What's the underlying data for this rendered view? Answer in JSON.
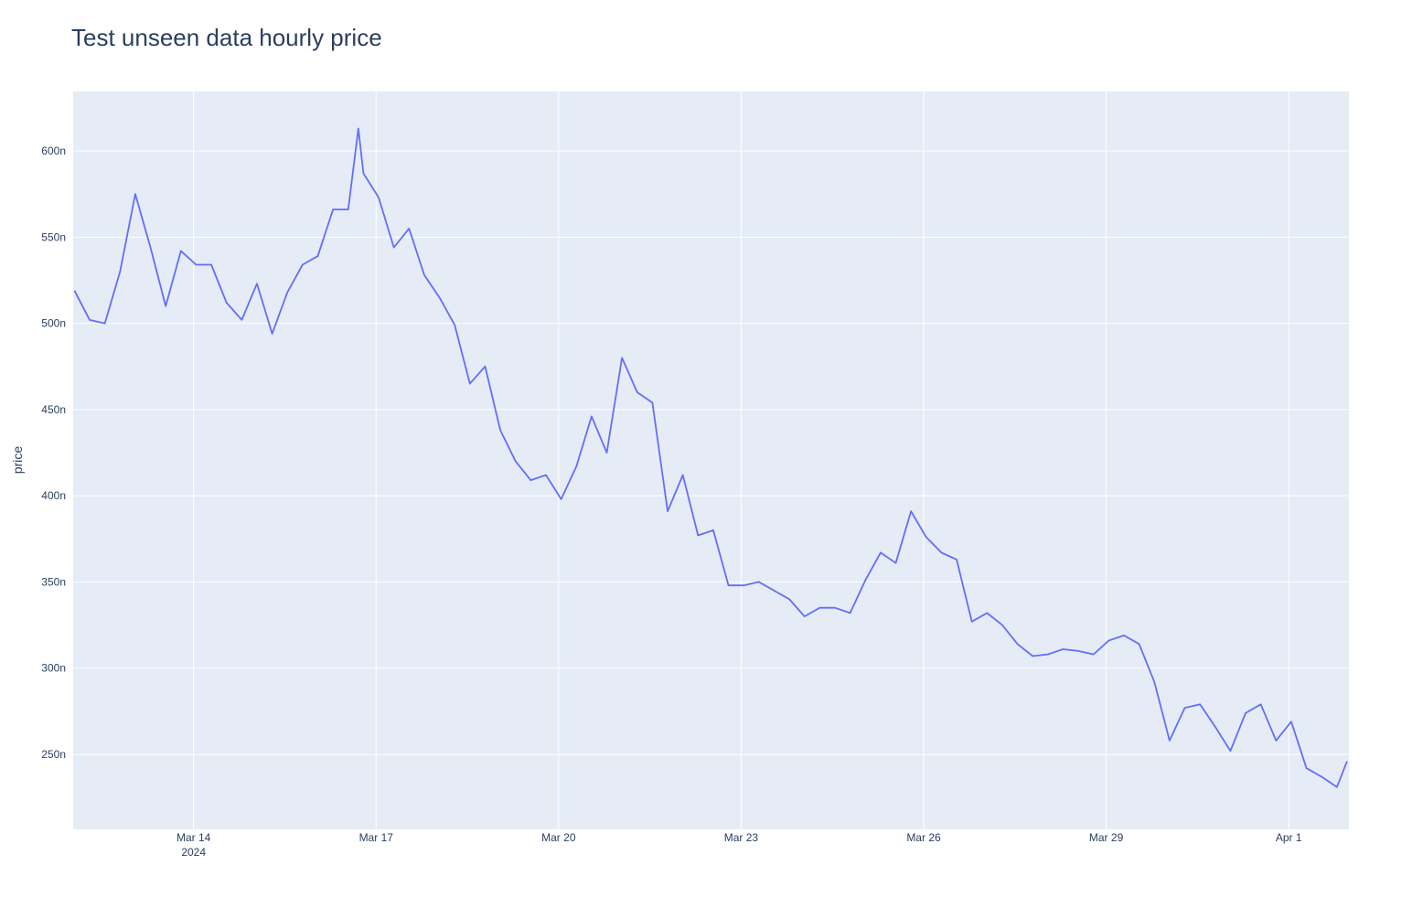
{
  "chart_data": {
    "type": "line",
    "title": "Test unseen data hourly price",
    "y_label": "price",
    "x": [
      "2024-03-12 01:00",
      "2024-03-12 07:00",
      "2024-03-12 13:00",
      "2024-03-12 19:00",
      "2024-03-13 01:00",
      "2024-03-13 07:00",
      "2024-03-13 13:00",
      "2024-03-13 19:00",
      "2024-03-14 01:00",
      "2024-03-14 07:00",
      "2024-03-14 13:00",
      "2024-03-14 19:00",
      "2024-03-15 01:00",
      "2024-03-15 07:00",
      "2024-03-15 13:00",
      "2024-03-15 19:00",
      "2024-03-16 01:00",
      "2024-03-16 07:00",
      "2024-03-16 13:00",
      "2024-03-16 17:00",
      "2024-03-16 19:00",
      "2024-03-17 01:00",
      "2024-03-17 07:00",
      "2024-03-17 13:00",
      "2024-03-17 19:00",
      "2024-03-18 01:00",
      "2024-03-18 07:00",
      "2024-03-18 13:00",
      "2024-03-18 19:00",
      "2024-03-19 01:00",
      "2024-03-19 07:00",
      "2024-03-19 13:00",
      "2024-03-19 19:00",
      "2024-03-20 01:00",
      "2024-03-20 07:00",
      "2024-03-20 13:00",
      "2024-03-20 19:00",
      "2024-03-21 01:00",
      "2024-03-21 07:00",
      "2024-03-21 13:00",
      "2024-03-21 19:00",
      "2024-03-22 01:00",
      "2024-03-22 07:00",
      "2024-03-22 13:00",
      "2024-03-22 19:00",
      "2024-03-23 01:00",
      "2024-03-23 07:00",
      "2024-03-23 13:00",
      "2024-03-23 19:00",
      "2024-03-24 01:00",
      "2024-03-24 07:00",
      "2024-03-24 13:00",
      "2024-03-24 19:00",
      "2024-03-25 01:00",
      "2024-03-25 07:00",
      "2024-03-25 13:00",
      "2024-03-25 19:00",
      "2024-03-26 01:00",
      "2024-03-26 07:00",
      "2024-03-26 13:00",
      "2024-03-26 19:00",
      "2024-03-27 01:00",
      "2024-03-27 07:00",
      "2024-03-27 13:00",
      "2024-03-27 19:00",
      "2024-03-28 01:00",
      "2024-03-28 07:00",
      "2024-03-28 13:00",
      "2024-03-28 19:00",
      "2024-03-29 01:00",
      "2024-03-29 07:00",
      "2024-03-29 13:00",
      "2024-03-29 19:00",
      "2024-03-30 01:00",
      "2024-03-30 07:00",
      "2024-03-30 13:00",
      "2024-03-30 19:00",
      "2024-03-31 01:00",
      "2024-03-31 07:00",
      "2024-03-31 13:00",
      "2024-03-31 19:00",
      "2024-04-01 01:00",
      "2024-04-01 07:00",
      "2024-04-01 13:00",
      "2024-04-01 19:00",
      "2024-04-01 23:00"
    ],
    "series": [
      {
        "name": "price",
        "color": "#636efa",
        "values": [
          519,
          502,
          500,
          530,
          575,
          544,
          510,
          542,
          534,
          534,
          512,
          502,
          523,
          494,
          518,
          534,
          539,
          566,
          566,
          613,
          587,
          573,
          544,
          555,
          528,
          515,
          499,
          465,
          475,
          438,
          420,
          409,
          412,
          398,
          417,
          446,
          425,
          480,
          460,
          454,
          391,
          412,
          377,
          380,
          348,
          348,
          350,
          345,
          340,
          330,
          335,
          335,
          332,
          351,
          367,
          361,
          391,
          376,
          367,
          363,
          327,
          332,
          325,
          314,
          307,
          308,
          311,
          310,
          308,
          316,
          319,
          314,
          292,
          258,
          277,
          279,
          266,
          252,
          274,
          279,
          258,
          269,
          242,
          237,
          231,
          246
        ]
      }
    ],
    "xlim": [
      "2024-03-12 00:30",
      "2024-04-01 23:45"
    ],
    "xticks": [
      {
        "value": "2024-03-14 00:00",
        "label": "Mar 14\n2024"
      },
      {
        "value": "2024-03-17 00:00",
        "label": "Mar 17"
      },
      {
        "value": "2024-03-20 00:00",
        "label": "Mar 20"
      },
      {
        "value": "2024-03-23 00:00",
        "label": "Mar 23"
      },
      {
        "value": "2024-03-26 00:00",
        "label": "Mar 26"
      },
      {
        "value": "2024-03-29 00:00",
        "label": "Mar 29"
      },
      {
        "value": "2024-04-01 00:00",
        "label": "Apr 1"
      }
    ],
    "ylim": [
      206.5,
      634.5
    ],
    "yticks": [
      {
        "value": 250,
        "label": "250n"
      },
      {
        "value": 300,
        "label": "300n"
      },
      {
        "value": 350,
        "label": "350n"
      },
      {
        "value": 400,
        "label": "400n"
      },
      {
        "value": 450,
        "label": "450n"
      },
      {
        "value": 500,
        "label": "500n"
      },
      {
        "value": 550,
        "label": "550n"
      },
      {
        "value": 600,
        "label": "600n"
      }
    ],
    "grid": true
  }
}
